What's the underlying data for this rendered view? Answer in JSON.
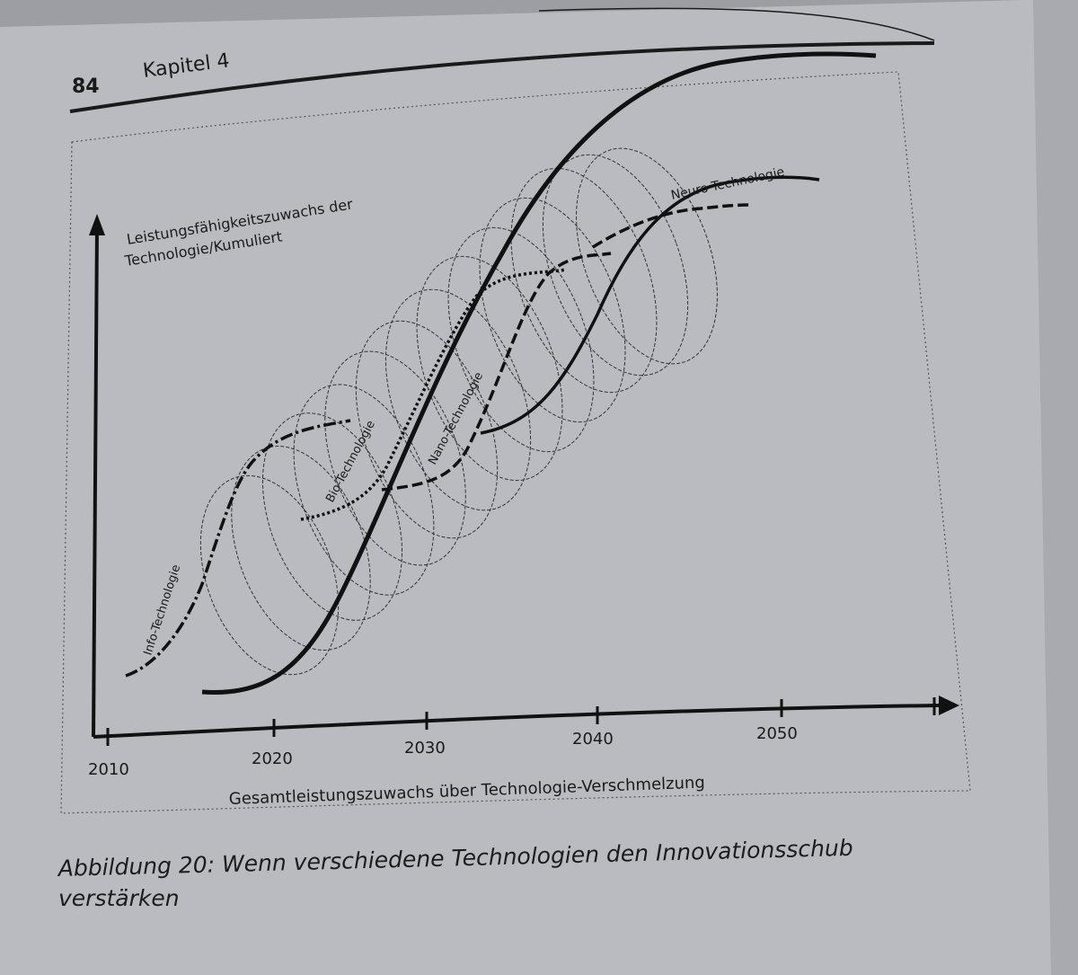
{
  "header": {
    "page_number": "84",
    "chapter": "Kapitel 4"
  },
  "figure": {
    "y_axis_label_line1": "Leistungsfähigkeitszuwachs der",
    "y_axis_label_line2": "Technologie/Kumuliert",
    "x_axis_label": "Gesamtleistungszuwachs über Technologie-Verschmelzung",
    "x_ticks": [
      "2010",
      "2020",
      "2030",
      "2040",
      "2050"
    ],
    "curve_labels": {
      "info": "Info-Technologie",
      "bio": "Bio-Technologie",
      "nano": "Nano-Technologie",
      "neuro": "Neuro-Technologie"
    }
  },
  "caption": {
    "line1": "Abbildung 20: Wenn verschiedene Technologien den Innovationsschub",
    "line2": "verstärken"
  }
}
